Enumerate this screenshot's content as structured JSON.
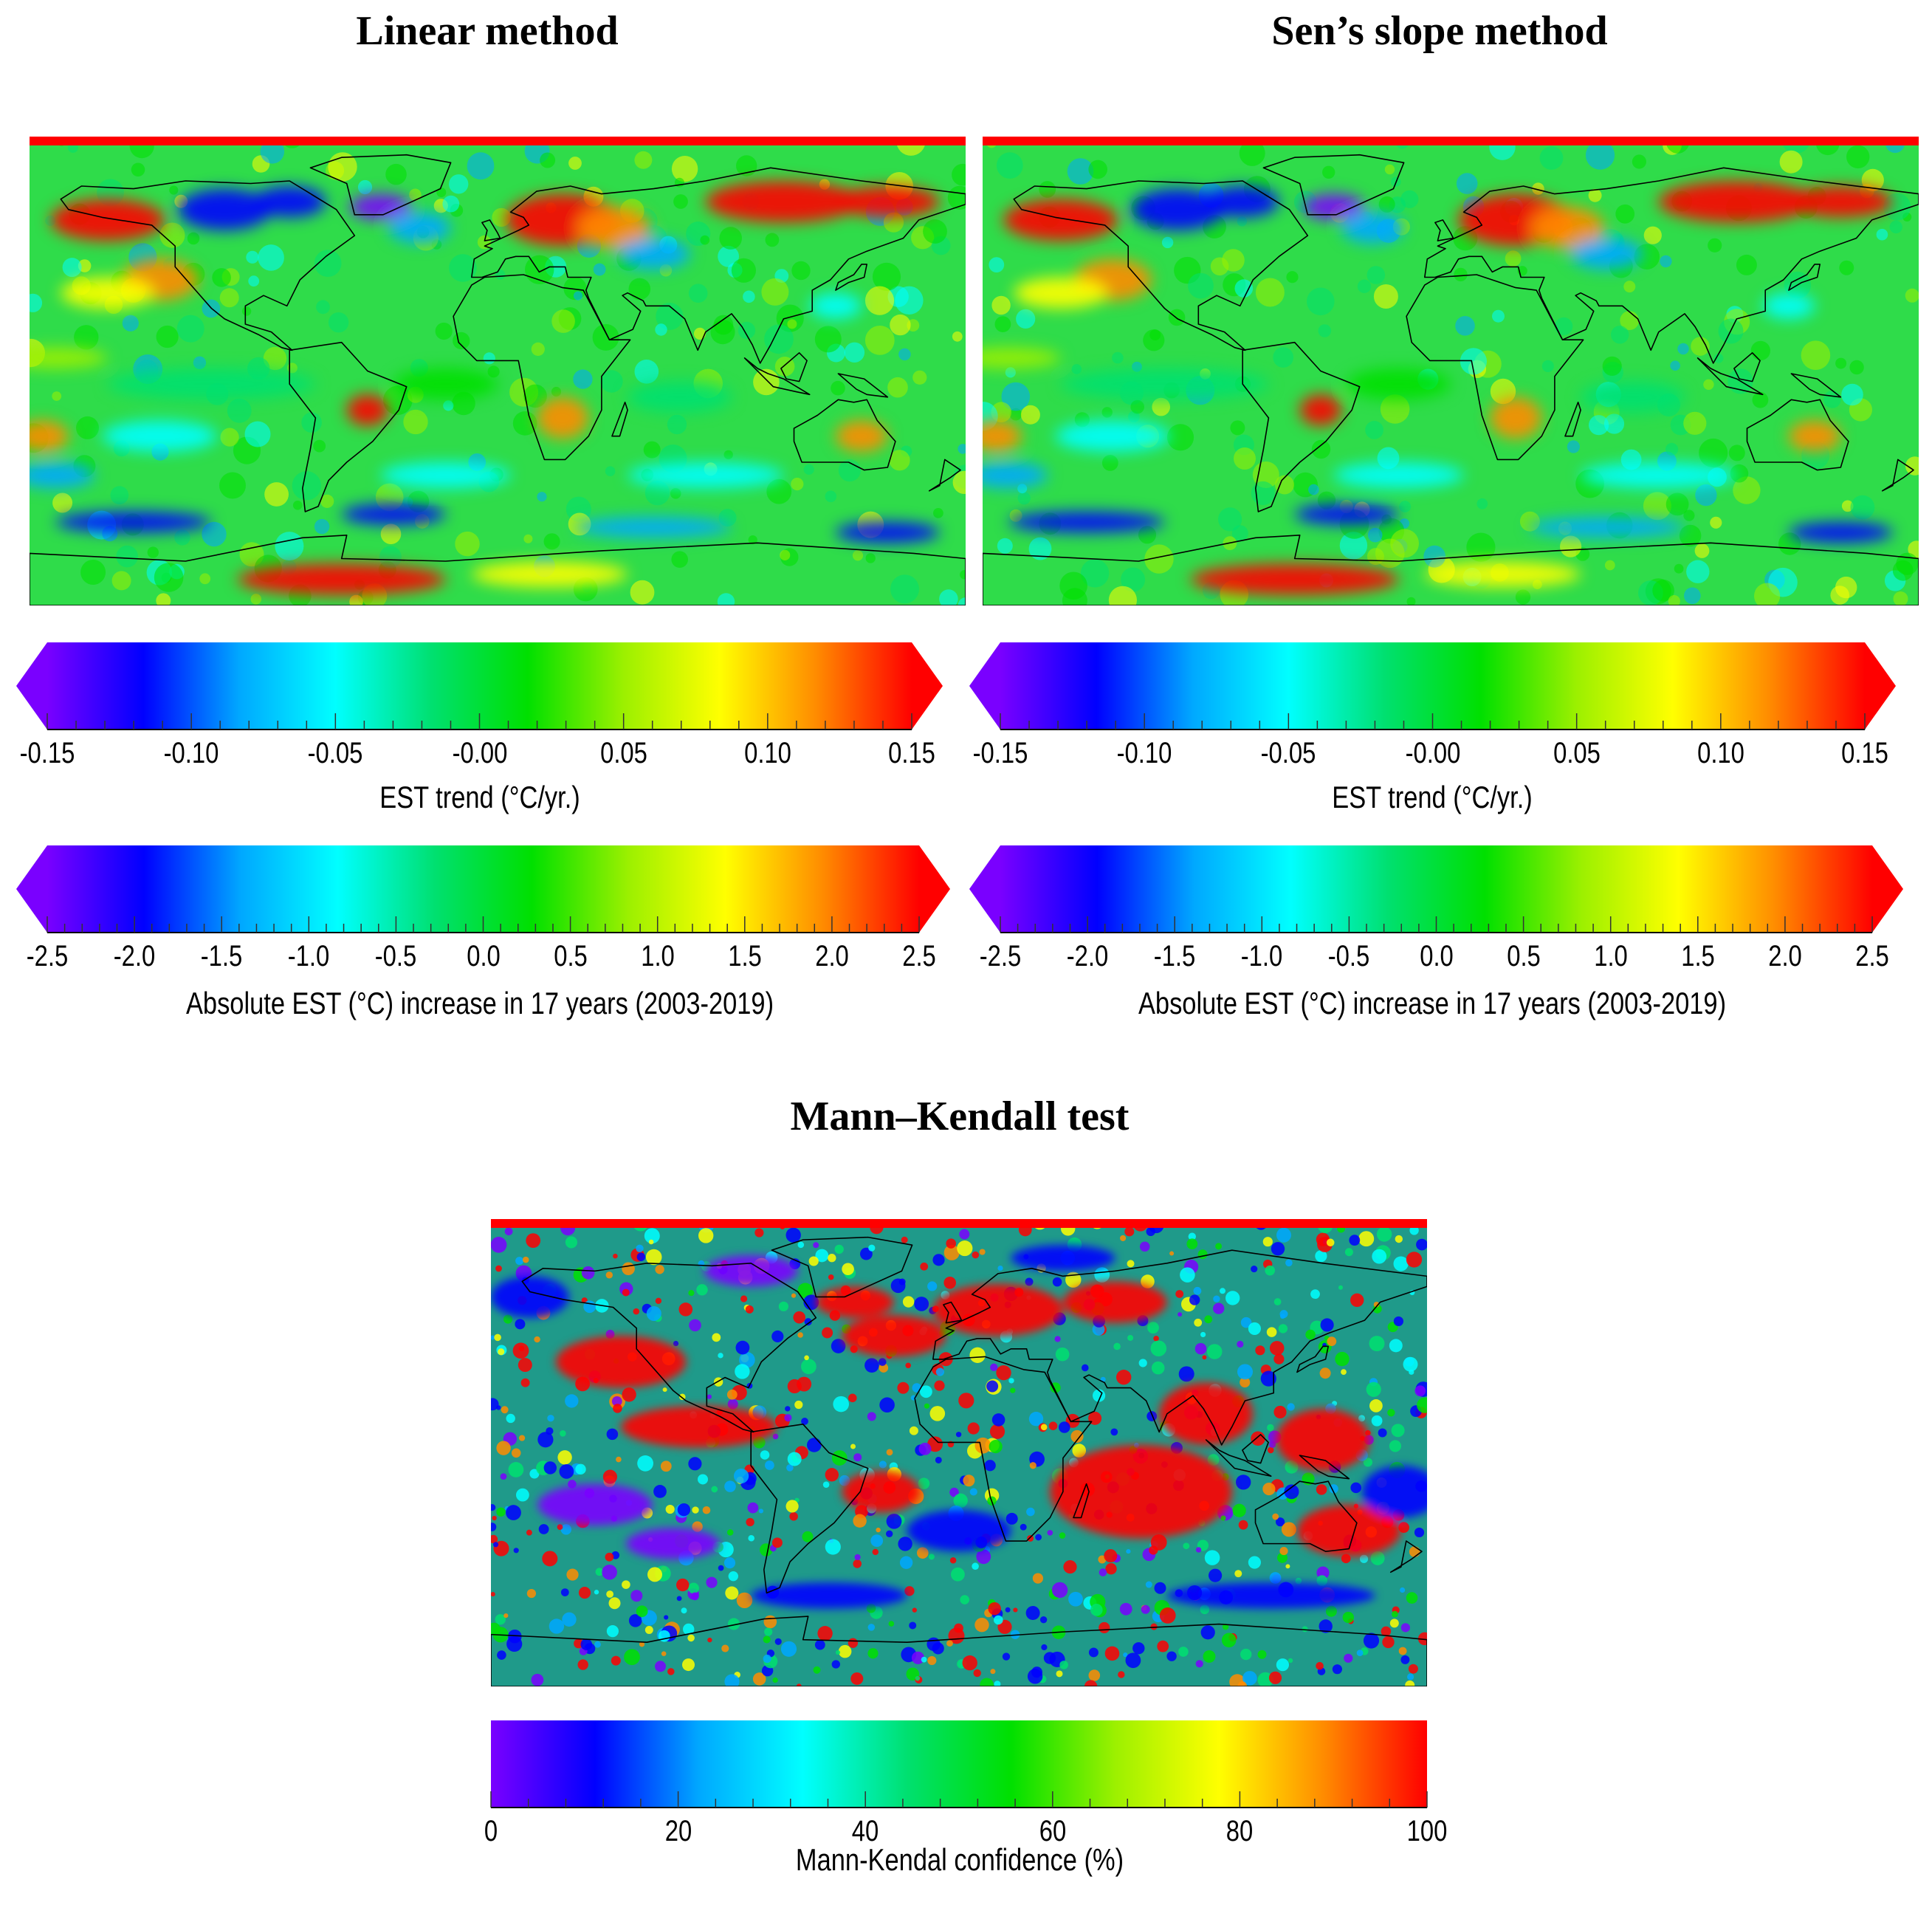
{
  "colors": {
    "scale": [
      "#7a00ff",
      "#0000ff",
      "#00a8ff",
      "#00ffff",
      "#00e070",
      "#00e000",
      "#9cf000",
      "#ffff00",
      "#ff8c00",
      "#ff0000"
    ],
    "ocean_base": "#2fdc4a",
    "land_outline": "#000000"
  },
  "panels": {
    "linear": {
      "title": "Linear method",
      "trend_bar": {
        "ticks": [
          "-0.15",
          "-0.10",
          "-0.05",
          "-0.00",
          "0.05",
          "0.10",
          "0.15"
        ],
        "caption": "EST trend (°C/yr.)",
        "range": [
          -0.15,
          0.15
        ]
      },
      "abs_bar": {
        "ticks": [
          "-2.5",
          "-2.0",
          "-1.5",
          "-1.0",
          "-0.5",
          "0.0",
          "0.5",
          "1.0",
          "1.5",
          "2.0",
          "2.5"
        ],
        "caption": "Absolute EST (°C) increase in 17 years (2003-2019)",
        "range": [
          -2.5,
          2.5
        ]
      }
    },
    "sens": {
      "title": "Sen’s slope method",
      "trend_bar": {
        "ticks": [
          "-0.15",
          "-0.10",
          "-0.05",
          "-0.00",
          "0.05",
          "0.10",
          "0.15"
        ],
        "caption": "EST trend (°C/yr.)",
        "range": [
          -0.15,
          0.15
        ]
      },
      "abs_bar": {
        "ticks": [
          "-2.5",
          "-2.0",
          "-1.5",
          "-1.0",
          "-0.5",
          "0.0",
          "0.5",
          "1.0",
          "1.5",
          "2.0",
          "2.5"
        ],
        "caption": "Absolute EST (°C) increase in 17 years (2003-2019)",
        "range": [
          -2.5,
          2.5
        ]
      }
    },
    "mk": {
      "title": "Mann–Kendall test",
      "conf_bar": {
        "ticks": [
          "0",
          "20",
          "40",
          "60",
          "80",
          "100"
        ],
        "caption": "Mann-Kendal confidence (%)",
        "range": [
          0,
          100
        ]
      }
    }
  }
}
